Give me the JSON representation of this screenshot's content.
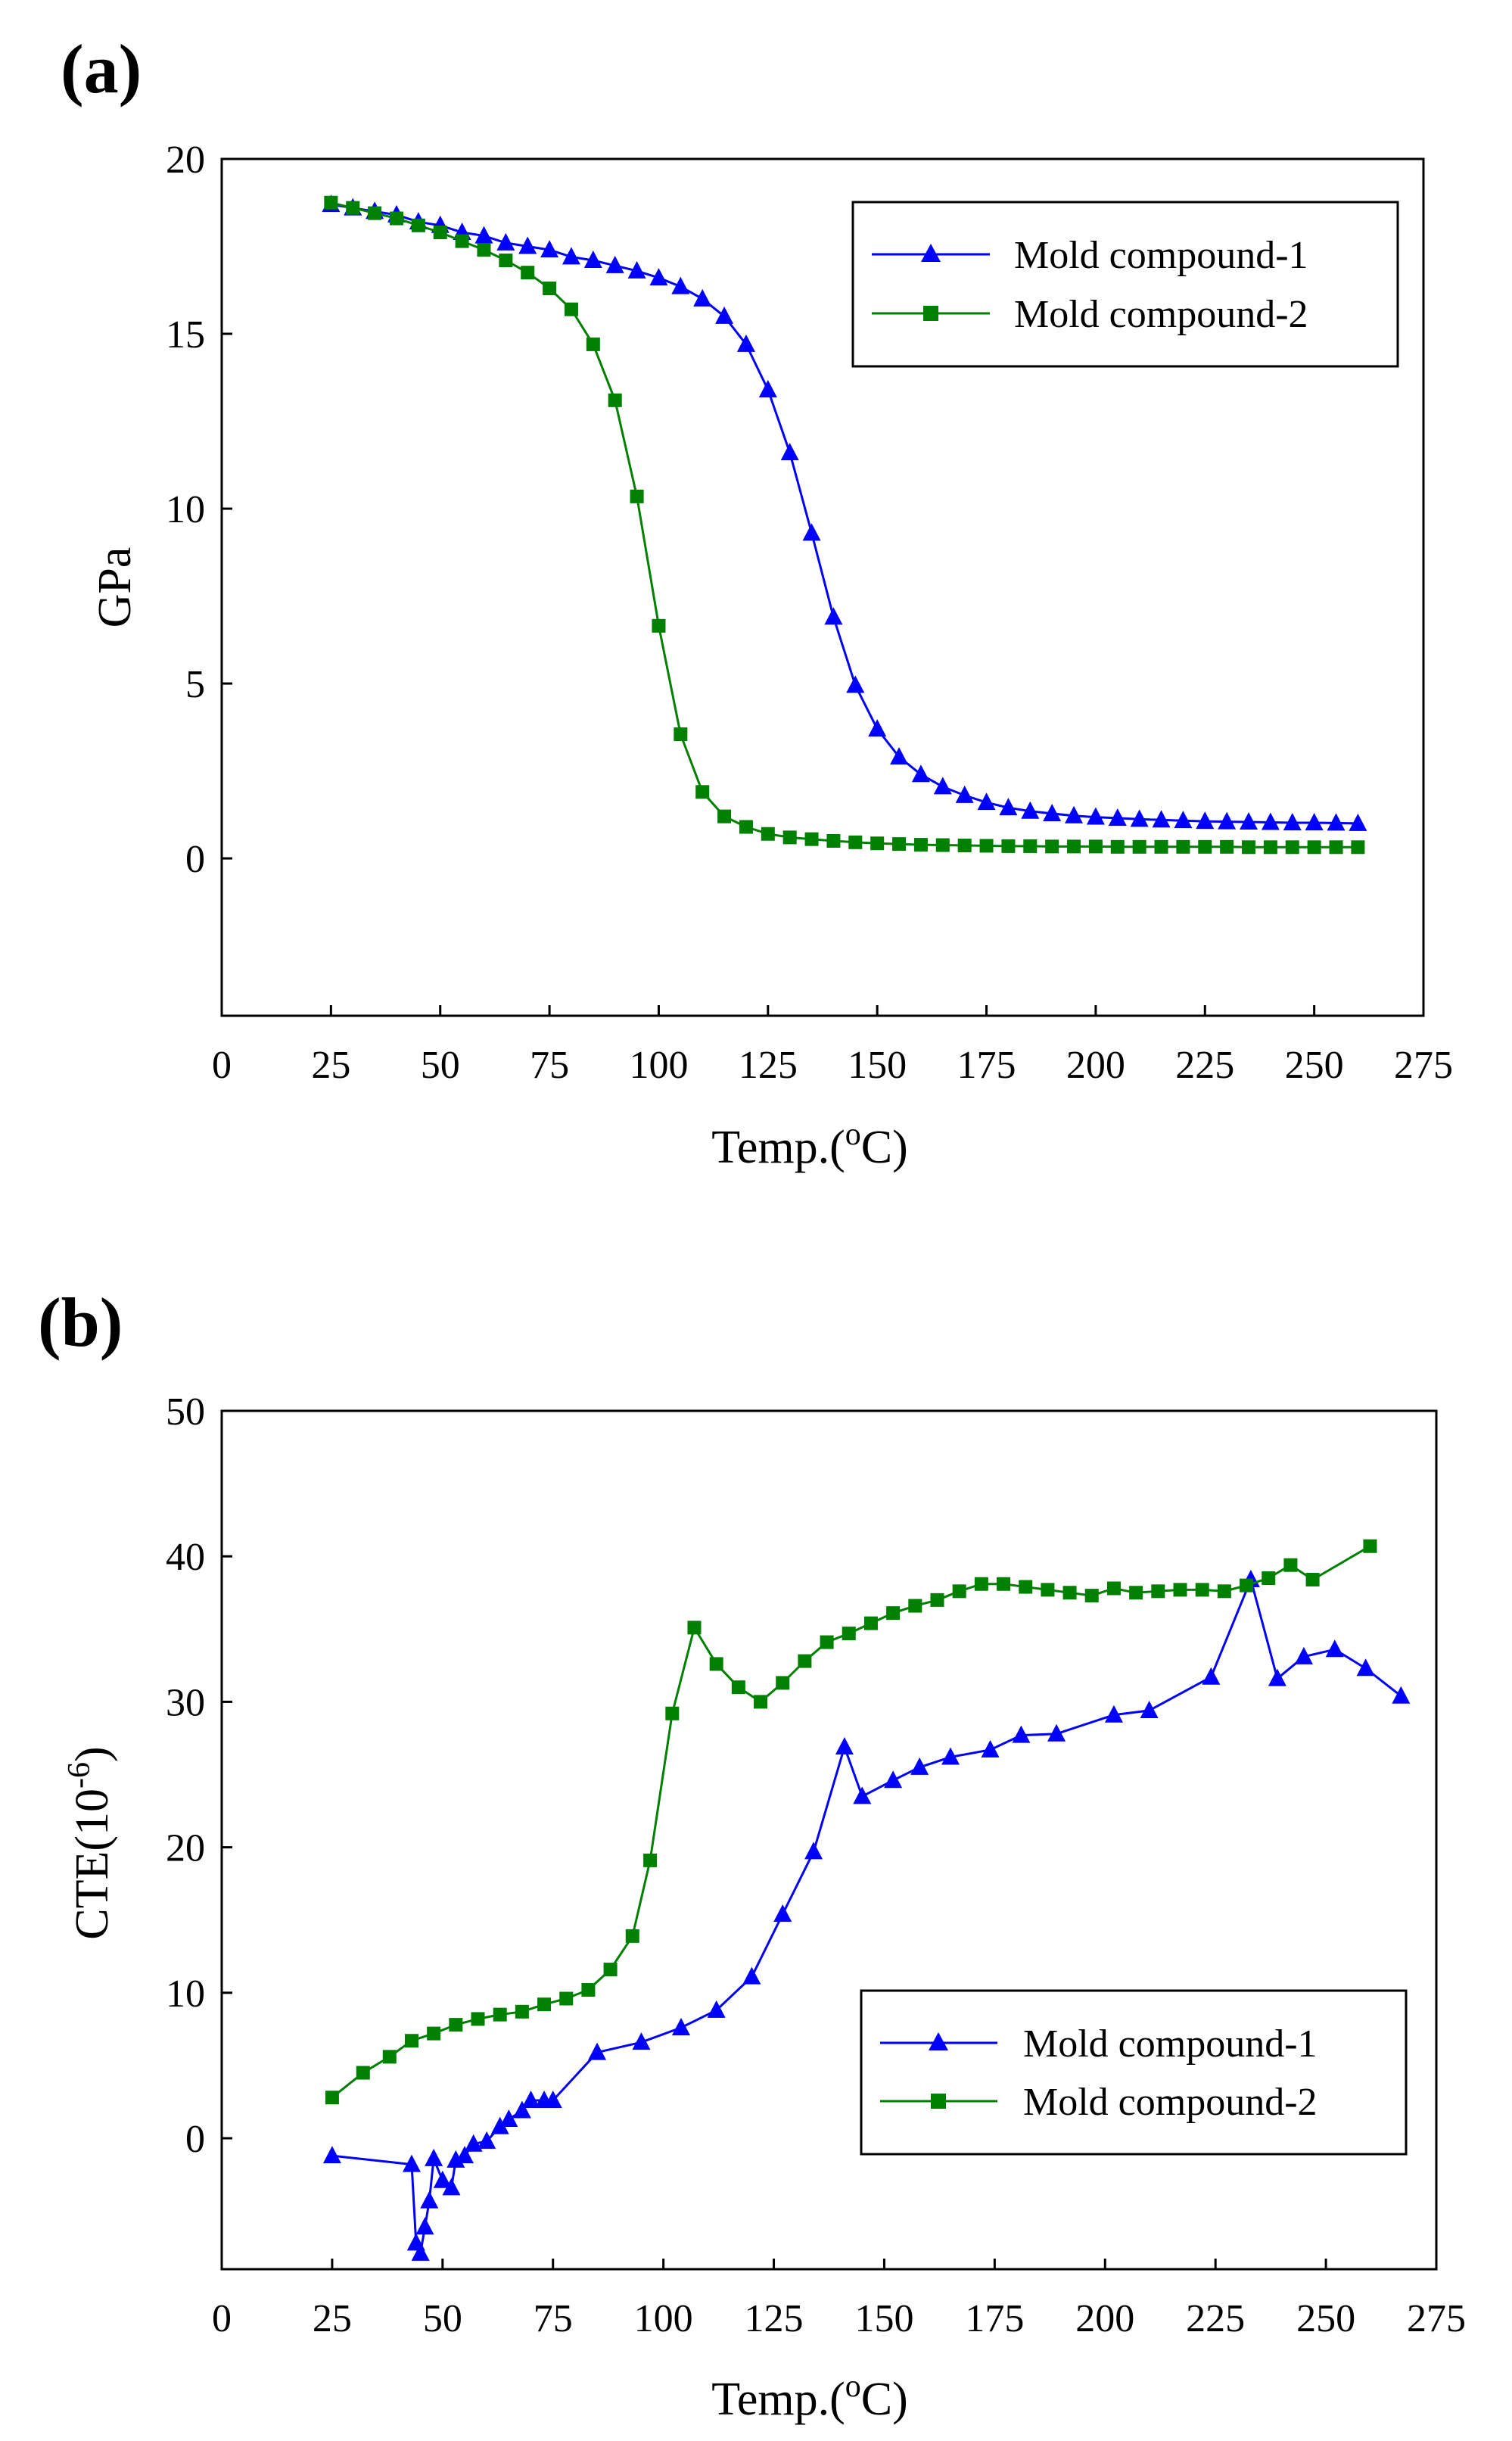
{
  "chart_data": [
    {
      "panel_label": "(a)",
      "type": "line",
      "xlabel": "Temp.(",
      "xlabel_sup": "o",
      "xlabel_suffix": "C)",
      "ylabel": "GPa",
      "xlim": [
        0,
        275
      ],
      "ylim": [
        -4.5,
        20
      ],
      "x_ticks": [
        "0",
        "25",
        "50",
        "75",
        "100",
        "125",
        "150",
        "175",
        "200",
        "225",
        "250",
        "275"
      ],
      "y_ticks": [
        "0",
        "5",
        "10",
        "15",
        "20"
      ],
      "legend_position": "top-right",
      "series": [
        {
          "name": "Mold compound-1",
          "color": "#0000ff",
          "marker": "triangle",
          "x": [
            25,
            30,
            35,
            40,
            45,
            50,
            55,
            60,
            65,
            70,
            75,
            80,
            85,
            90,
            95,
            100,
            105,
            110,
            115,
            120,
            125,
            130,
            135,
            140,
            145,
            150,
            155,
            160,
            165,
            170,
            175,
            180,
            185,
            190,
            195,
            200,
            205,
            210,
            215,
            220,
            225,
            230,
            235,
            240,
            245,
            250,
            255,
            260
          ],
          "y": [
            18.7,
            18.6,
            18.5,
            18.4,
            18.2,
            18.1,
            17.9,
            17.8,
            17.6,
            17.5,
            17.4,
            17.2,
            17.1,
            16.95,
            16.8,
            16.6,
            16.35,
            16.0,
            15.5,
            14.7,
            13.4,
            11.6,
            9.3,
            6.9,
            4.95,
            3.7,
            2.9,
            2.4,
            2.05,
            1.8,
            1.6,
            1.45,
            1.35,
            1.28,
            1.22,
            1.18,
            1.15,
            1.12,
            1.1,
            1.08,
            1.06,
            1.05,
            1.04,
            1.03,
            1.02,
            1.02,
            1.01,
            1.0
          ]
        },
        {
          "name": "Mold compound-2",
          "color": "#008000",
          "marker": "square",
          "x": [
            25,
            30,
            35,
            40,
            45,
            50,
            55,
            60,
            65,
            70,
            75,
            80,
            85,
            90,
            95,
            100,
            105,
            110,
            115,
            120,
            125,
            130,
            135,
            140,
            145,
            150,
            155,
            160,
            165,
            170,
            175,
            180,
            185,
            190,
            195,
            200,
            205,
            210,
            215,
            220,
            225,
            230,
            235,
            240,
            245,
            250,
            255,
            260
          ],
          "y": [
            18.75,
            18.6,
            18.45,
            18.3,
            18.1,
            17.9,
            17.65,
            17.4,
            17.1,
            16.75,
            16.3,
            15.7,
            14.7,
            13.1,
            10.35,
            6.65,
            3.55,
            1.9,
            1.2,
            0.9,
            0.7,
            0.6,
            0.55,
            0.5,
            0.46,
            0.43,
            0.41,
            0.39,
            0.38,
            0.37,
            0.36,
            0.35,
            0.35,
            0.34,
            0.34,
            0.34,
            0.33,
            0.33,
            0.33,
            0.33,
            0.33,
            0.33,
            0.32,
            0.32,
            0.32,
            0.32,
            0.32,
            0.32
          ]
        }
      ]
    },
    {
      "panel_label": "(b)",
      "type": "line",
      "xlabel": "Temp.(",
      "xlabel_sup": "o",
      "xlabel_suffix": "C)",
      "ylabel": "CTE(10",
      "ylabel_sup": "-6",
      "ylabel_suffix": ")",
      "xlim": [
        0,
        275
      ],
      "ylim": [
        -9,
        50
      ],
      "x_ticks": [
        "0",
        "25",
        "50",
        "75",
        "100",
        "125",
        "150",
        "175",
        "200",
        "225",
        "250",
        "275"
      ],
      "y_ticks": [
        "0",
        "10",
        "20",
        "30",
        "40",
        "50"
      ],
      "legend_position": "bottom-right",
      "series": [
        {
          "name": "Mold compound-1",
          "color": "#0000ff",
          "marker": "triangle",
          "x": [
            25,
            43,
            44,
            45,
            46,
            47,
            48,
            50,
            52,
            53,
            55,
            57,
            60,
            63,
            65,
            68,
            70,
            73,
            75,
            85,
            95,
            104,
            112,
            120,
            127,
            134,
            141,
            145,
            152,
            158,
            165,
            174,
            181,
            189,
            202,
            210,
            224,
            233,
            239,
            245,
            252,
            259,
            267
          ],
          "y": [
            -1.2,
            -1.8,
            -7.2,
            -7.9,
            -6.1,
            -4.3,
            -1.4,
            -2.9,
            -3.4,
            -1.5,
            -1.2,
            -0.4,
            -0.2,
            0.8,
            1.3,
            1.9,
            2.6,
            2.6,
            2.6,
            5.9,
            6.6,
            7.6,
            8.8,
            11.1,
            15.4,
            19.7,
            26.9,
            23.5,
            24.6,
            25.5,
            26.2,
            26.7,
            27.7,
            27.8,
            29.1,
            29.4,
            31.7,
            38.4,
            31.6,
            33.1,
            33.6,
            32.3,
            30.4
          ]
        },
        {
          "name": "Mold compound-2",
          "color": "#008000",
          "marker": "square",
          "x": [
            25,
            32,
            38,
            43,
            48,
            53,
            58,
            63,
            68,
            73,
            78,
            83,
            88,
            93,
            97,
            102,
            107,
            112,
            117,
            122,
            127,
            132,
            137,
            142,
            147,
            152,
            157,
            162,
            167,
            172,
            177,
            182,
            187,
            192,
            197,
            202,
            207,
            212,
            217,
            222,
            227,
            232,
            237,
            242,
            247,
            260
          ],
          "y": [
            2.8,
            4.5,
            5.6,
            6.7,
            7.2,
            7.8,
            8.2,
            8.5,
            8.7,
            9.2,
            9.6,
            10.2,
            11.6,
            13.9,
            19.1,
            29.2,
            35.1,
            32.6,
            31.0,
            30.0,
            31.3,
            32.8,
            34.1,
            34.7,
            35.4,
            36.1,
            36.6,
            37.0,
            37.6,
            38.1,
            38.1,
            37.9,
            37.7,
            37.5,
            37.3,
            37.8,
            37.5,
            37.6,
            37.7,
            37.7,
            37.6,
            38.0,
            38.5,
            39.4,
            38.4,
            40.7
          ]
        }
      ]
    }
  ]
}
